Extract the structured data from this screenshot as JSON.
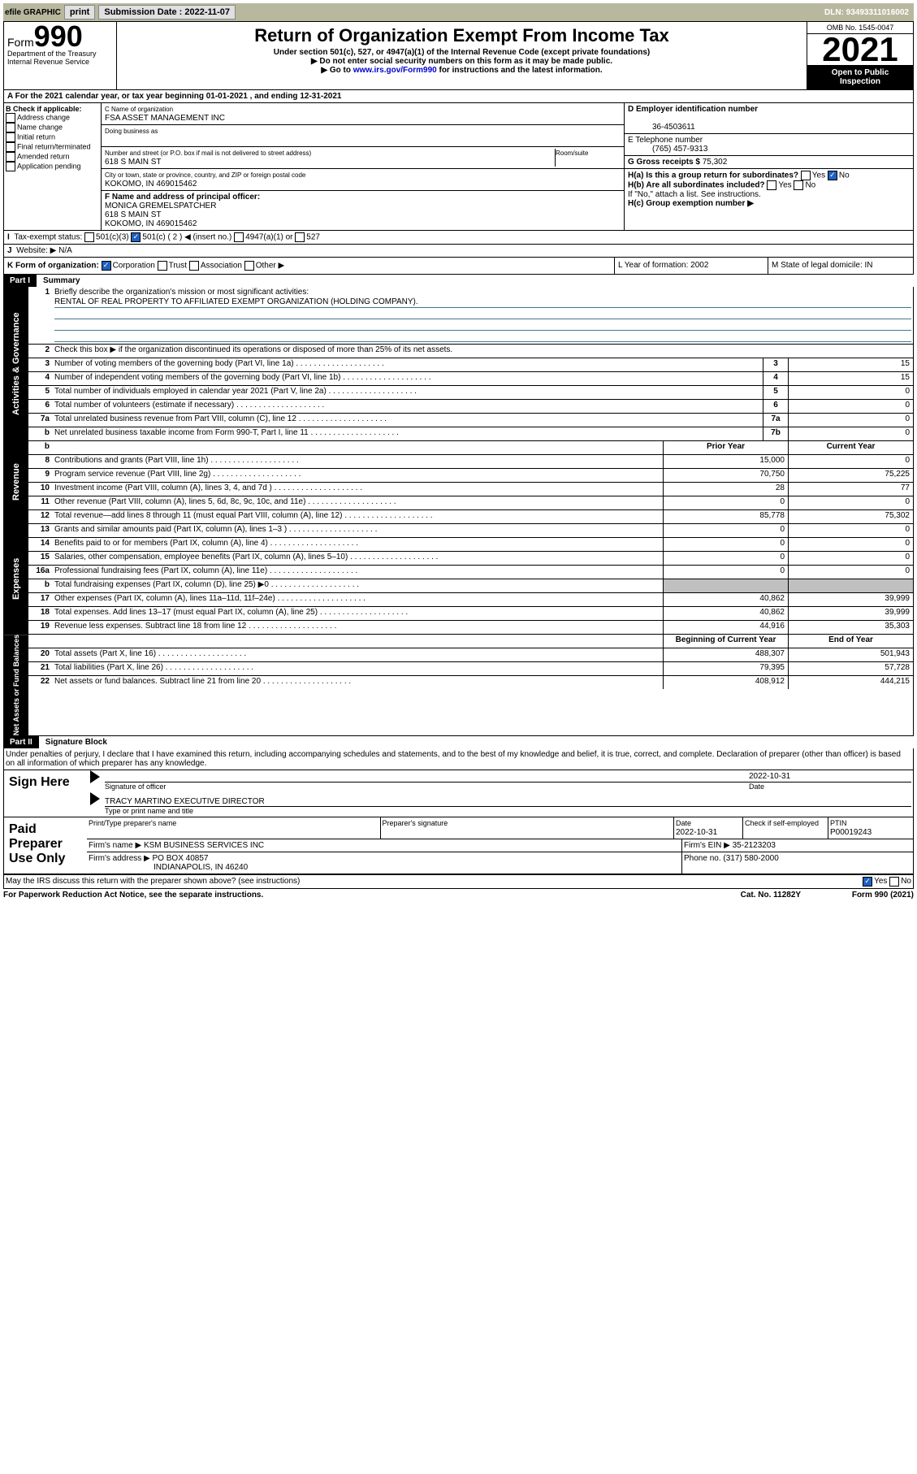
{
  "topbar": {
    "efile": "efile GRAPHIC",
    "print": "print",
    "subdate_lbl": "Submission Date : 2022-11-07",
    "dln": "DLN: 93493311016002"
  },
  "header": {
    "form": "Form",
    "num": "990",
    "title": "Return of Organization Exempt From Income Tax",
    "sub1": "Under section 501(c), 527, or 4947(a)(1) of the Internal Revenue Code (except private foundations)",
    "sub2": "▶ Do not enter social security numbers on this form as it may be made public.",
    "sub3": "▶ Go to ",
    "link": "www.irs.gov/Form990",
    "sub3b": " for instructions and the latest information.",
    "dept": "Department of the Treasury",
    "irs": "Internal Revenue Service",
    "omb": "OMB No. 1545-0047",
    "year": "2021",
    "otp": "Open to Public Inspection"
  },
  "rowA": {
    "text": "A For the 2021 calendar year, or tax year beginning 01-01-2021   , and ending 12-31-2021"
  },
  "colB": {
    "hdr": "B Check if applicable:",
    "items": [
      "Address change",
      "Name change",
      "Initial return",
      "Final return/terminated",
      "Amended return",
      "Application pending"
    ]
  },
  "colC": {
    "name_lbl": "C Name of organization",
    "name": "FSA ASSET MANAGEMENT INC",
    "dba_lbl": "Doing business as",
    "dba": "",
    "addr_lbl": "Number and street (or P.O. box if mail is not delivered to street address)",
    "room_lbl": "Room/suite",
    "addr": "618 S MAIN ST",
    "city_lbl": "City or town, state or province, country, and ZIP or foreign postal code",
    "city": "KOKOMO, IN  469015462",
    "f_lbl": "F Name and address of principal officer:",
    "f_name": "MONICA GREMELSPATCHER",
    "f_addr": "618 S MAIN ST",
    "f_city": "KOKOMO, IN  469015462"
  },
  "colD": {
    "ein_lbl": "D Employer identification number",
    "ein": "36-4503611",
    "tel_lbl": "E Telephone number",
    "tel": "(765) 457-9313",
    "gross_lbl": "G Gross receipts $ ",
    "gross": "75,302",
    "ha": "H(a)  Is this a group return for subordinates?",
    "yes": "Yes",
    "no": "No",
    "hb": "H(b)  Are all subordinates included?",
    "hb2": "If \"No,\" attach a list. See instructions.",
    "hc": "H(c)  Group exemption number ▶"
  },
  "rowI": {
    "lbl": "I",
    "txt": "Tax-exempt status:",
    "o1": "501(c)(3)",
    "o2": "501(c) ( 2 ) ◀ (insert no.)",
    "o3": "4947(a)(1) or",
    "o4": "527"
  },
  "rowJ": {
    "lbl": "J",
    "txt": "Website: ▶",
    "val": "N/A"
  },
  "rowK": {
    "lbl": "K Form of organization:",
    "o1": "Corporation",
    "o2": "Trust",
    "o3": "Association",
    "o4": "Other ▶",
    "l": "L Year of formation: 2002",
    "m": "M State of legal domicile: IN"
  },
  "part1": {
    "lbl": "Part I",
    "ttl": "Summary"
  },
  "summary": {
    "q1": "Briefly describe the organization's mission or most significant activities:",
    "mission": "RENTAL OF REAL PROPERTY TO AFFILIATED EXEMPT ORGANIZATION (HOLDING COMPANY).",
    "q2": "Check this box ▶      if the organization discontinued its operations or disposed of more than 25% of its net assets.",
    "lines": [
      {
        "n": "3",
        "t": "Number of voting members of the governing body (Part VI, line 1a)",
        "box": "3",
        "v": "15"
      },
      {
        "n": "4",
        "t": "Number of independent voting members of the governing body (Part VI, line 1b)",
        "box": "4",
        "v": "15"
      },
      {
        "n": "5",
        "t": "Total number of individuals employed in calendar year 2021 (Part V, line 2a)",
        "box": "5",
        "v": "0"
      },
      {
        "n": "6",
        "t": "Total number of volunteers (estimate if necessary)",
        "box": "6",
        "v": "0"
      },
      {
        "n": "7a",
        "t": "Total unrelated business revenue from Part VIII, column (C), line 12",
        "box": "7a",
        "v": "0"
      },
      {
        "n": "b",
        "t": "Net unrelated business taxable income from Form 990-T, Part I, line 11",
        "box": "7b",
        "v": "0"
      }
    ],
    "col_prior": "Prior Year",
    "col_curr": "Current Year"
  },
  "revenue": [
    {
      "n": "8",
      "t": "Contributions and grants (Part VIII, line 1h)",
      "p": "15,000",
      "c": "0"
    },
    {
      "n": "9",
      "t": "Program service revenue (Part VIII, line 2g)",
      "p": "70,750",
      "c": "75,225"
    },
    {
      "n": "10",
      "t": "Investment income (Part VIII, column (A), lines 3, 4, and 7d )",
      "p": "28",
      "c": "77"
    },
    {
      "n": "11",
      "t": "Other revenue (Part VIII, column (A), lines 5, 6d, 8c, 9c, 10c, and 11e)",
      "p": "0",
      "c": "0"
    },
    {
      "n": "12",
      "t": "Total revenue—add lines 8 through 11 (must equal Part VIII, column (A), line 12)",
      "p": "85,778",
      "c": "75,302"
    }
  ],
  "expenses": [
    {
      "n": "13",
      "t": "Grants and similar amounts paid (Part IX, column (A), lines 1–3 )",
      "p": "0",
      "c": "0"
    },
    {
      "n": "14",
      "t": "Benefits paid to or for members (Part IX, column (A), line 4)",
      "p": "0",
      "c": "0"
    },
    {
      "n": "15",
      "t": "Salaries, other compensation, employee benefits (Part IX, column (A), lines 5–10)",
      "p": "0",
      "c": "0"
    },
    {
      "n": "16a",
      "t": "Professional fundraising fees (Part IX, column (A), line 11e)",
      "p": "0",
      "c": "0"
    },
    {
      "n": "b",
      "t": "Total fundraising expenses (Part IX, column (D), line 25) ▶0",
      "p": "",
      "c": "",
      "shade": true
    },
    {
      "n": "17",
      "t": "Other expenses (Part IX, column (A), lines 11a–11d, 11f–24e)",
      "p": "40,862",
      "c": "39,999"
    },
    {
      "n": "18",
      "t": "Total expenses. Add lines 13–17 (must equal Part IX, column (A), line 25)",
      "p": "40,862",
      "c": "39,999"
    },
    {
      "n": "19",
      "t": "Revenue less expenses. Subtract line 18 from line 12",
      "p": "44,916",
      "c": "35,303"
    }
  ],
  "netassets": {
    "col_beg": "Beginning of Current Year",
    "col_end": "End of Year",
    "rows": [
      {
        "n": "20",
        "t": "Total assets (Part X, line 16)",
        "p": "488,307",
        "c": "501,943"
      },
      {
        "n": "21",
        "t": "Total liabilities (Part X, line 26)",
        "p": "79,395",
        "c": "57,728"
      },
      {
        "n": "22",
        "t": "Net assets or fund balances. Subtract line 21 from line 20",
        "p": "408,912",
        "c": "444,215"
      }
    ]
  },
  "part2": {
    "lbl": "Part II",
    "ttl": "Signature Block",
    "decl": "Under penalties of perjury, I declare that I have examined this return, including accompanying schedules and statements, and to the best of my knowledge and belief, it is true, correct, and complete. Declaration of preparer (other than officer) is based on all information of which preparer has any knowledge."
  },
  "sign": {
    "lbl": "Sign Here",
    "sig": "Signature of officer",
    "date_lbl": "Date",
    "date": "2022-10-31",
    "name": "TRACY MARTINO  EXECUTIVE DIRECTOR",
    "name_lbl": "Type or print name and title"
  },
  "paid": {
    "lbl": "Paid Preparer Use Only",
    "h1": "Print/Type preparer's name",
    "h2": "Preparer's signature",
    "h3": "Date",
    "h3v": "2022-10-31",
    "h4": "Check       if self-employed",
    "h5": "PTIN",
    "ptin": "P00019243",
    "firm_lbl": "Firm's name    ▶",
    "firm": "KSM BUSINESS SERVICES INC",
    "ein_lbl": "Firm's EIN ▶",
    "ein": "35-2123203",
    "addr_lbl": "Firm's address ▶",
    "addr1": "PO BOX 40857",
    "addr2": "INDIANAPOLIS, IN  46240",
    "ph_lbl": "Phone no.",
    "ph": "(317) 580-2000"
  },
  "discuss": {
    "txt": "May the IRS discuss this return with the preparer shown above? (see instructions)",
    "yes": "Yes",
    "no": "No"
  },
  "footer": {
    "l": "For Paperwork Reduction Act Notice, see the separate instructions.",
    "c": "Cat. No. 11282Y",
    "r": "Form 990 (2021)"
  }
}
